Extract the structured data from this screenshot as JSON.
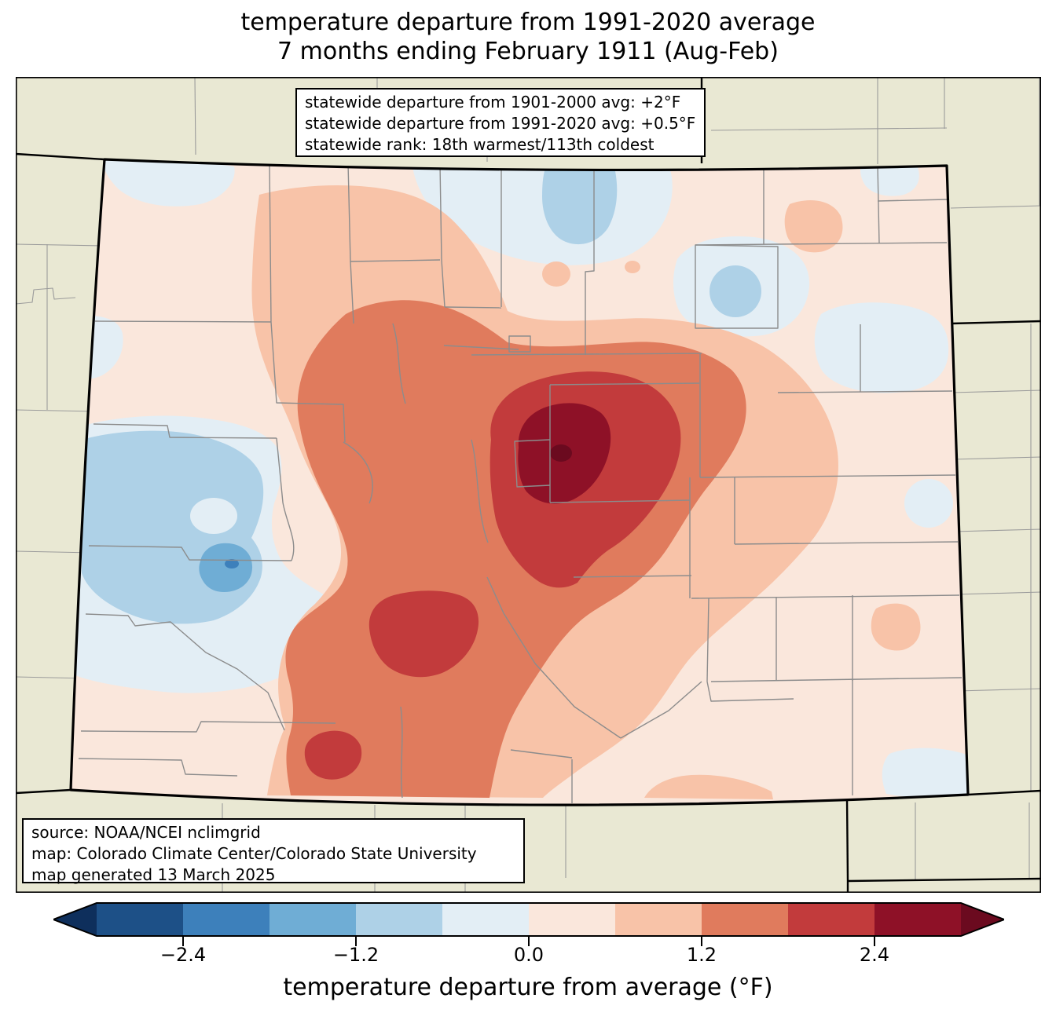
{
  "title": {
    "line1": "temperature departure from 1991-2020 average",
    "line2": "7 months ending February 1911 (Aug-Feb)"
  },
  "stats_box": {
    "line1": "statewide departure from 1901-2000 avg: +2°F",
    "line2": "statewide departure from 1991-2020 avg: +0.5°F",
    "line3": "statewide rank: 18th warmest/113th coldest"
  },
  "source_box": {
    "line1": "source: NOAA/NCEI nclimgrid",
    "line2": "map: Colorado Climate Center/Colorado State University",
    "line3": "map generated 13 March 2025"
  },
  "colorbar": {
    "label": "temperature departure from average (°F)",
    "ticks": [
      "−2.4",
      "−1.2",
      "0.0",
      "1.2",
      "2.4"
    ],
    "under_color": "#0e2f5c",
    "over_color": "#6b0a1f",
    "bins": [
      {
        "range": "-3.0 to -2.4",
        "color": "#1d5087"
      },
      {
        "range": "-2.4 to -1.8",
        "color": "#3d80bb"
      },
      {
        "range": "-1.8 to -1.2",
        "color": "#6fadd5"
      },
      {
        "range": "-1.2 to -0.6",
        "color": "#aed1e7"
      },
      {
        "range": "-0.6 to 0.0",
        "color": "#e3eef5"
      },
      {
        "range": "0.0 to 0.6",
        "color": "#fae7dc"
      },
      {
        "range": "0.6 to 1.2",
        "color": "#f8c3a8"
      },
      {
        "range": "1.2 to 1.8",
        "color": "#e07b5d"
      },
      {
        "range": "1.8 to 2.4",
        "color": "#c23b3c"
      },
      {
        "range": "2.4 to 3.0",
        "color": "#8e1127"
      }
    ]
  },
  "map": {
    "region": "Colorado",
    "outside_fill": "#e9e8d3",
    "bin_colors": {
      "m6": "#0e2f5c",
      "m5": "#1d5087",
      "m4": "#3d80bb",
      "m3": "#6fadd5",
      "m2": "#aed1e7",
      "m1": "#e3eef5",
      "p1": "#fae7dc",
      "p2": "#f8c3a8",
      "p3": "#e07b5d",
      "p4": "#c23b3c",
      "p5": "#8e1127",
      "p6": "#6b0a1f"
    }
  }
}
